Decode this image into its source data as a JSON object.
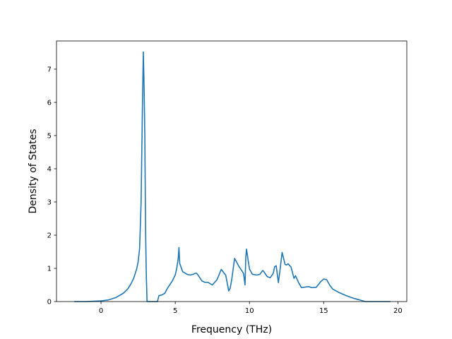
{
  "chart_data": {
    "type": "line",
    "title": "",
    "xlabel": "Frequency (THz)",
    "ylabel": "Density of States",
    "xlim": [
      -3.0,
      20.6
    ],
    "ylim": [
      0,
      7.85
    ],
    "xticks": [
      0,
      5,
      10,
      15,
      20
    ],
    "yticks": [
      0,
      1,
      2,
      3,
      4,
      5,
      6,
      7
    ],
    "xtick_labels": [
      "0",
      "5",
      "10",
      "15",
      "20"
    ],
    "ytick_labels": [
      "0",
      "1",
      "2",
      "3",
      "4",
      "5",
      "6",
      "7"
    ],
    "grid": false,
    "legend": "none",
    "series": [
      {
        "color": "#1f77b4",
        "x": [
          -1.8,
          -1.0,
          0.0,
          0.5,
          1.0,
          1.5,
          1.8,
          2.0,
          2.2,
          2.4,
          2.5,
          2.6,
          2.7,
          2.8,
          2.85,
          2.9,
          2.95,
          3.0,
          3.05,
          3.1,
          3.2,
          3.3,
          3.5,
          3.8,
          3.9,
          4.1,
          4.3,
          4.5,
          4.8,
          5.0,
          5.1,
          5.2,
          5.25,
          5.3,
          5.5,
          5.8,
          6.0,
          6.2,
          6.4,
          6.5,
          6.8,
          7.0,
          7.2,
          7.5,
          7.8,
          7.9,
          8.1,
          8.3,
          8.4,
          8.6,
          8.7,
          8.8,
          9.0,
          9.3,
          9.5,
          9.6,
          9.7,
          9.75,
          9.8,
          10.0,
          10.2,
          10.5,
          10.7,
          10.9,
          11.0,
          11.2,
          11.4,
          11.6,
          11.7,
          11.8,
          11.95,
          12.05,
          12.2,
          12.4,
          12.5,
          12.6,
          12.8,
          13.0,
          13.1,
          13.3,
          13.5,
          13.8,
          14.0,
          14.2,
          14.5,
          14.8,
          15.0,
          15.2,
          15.4,
          15.6,
          16.0,
          16.5,
          17.0,
          17.5,
          17.8,
          18.5,
          19.5
        ],
        "y": [
          0.0,
          0.0,
          0.02,
          0.05,
          0.12,
          0.25,
          0.38,
          0.52,
          0.7,
          0.98,
          1.2,
          1.6,
          3.0,
          6.2,
          7.52,
          6.5,
          5.0,
          2.2,
          0.8,
          0.0,
          0.0,
          0.0,
          0.0,
          0.0,
          0.18,
          0.2,
          0.25,
          0.42,
          0.62,
          0.8,
          1.0,
          1.3,
          1.63,
          1.15,
          0.9,
          0.82,
          0.8,
          0.82,
          0.86,
          0.82,
          0.62,
          0.58,
          0.58,
          0.5,
          0.65,
          0.75,
          0.97,
          0.85,
          0.8,
          0.32,
          0.4,
          0.65,
          1.3,
          1.05,
          0.92,
          0.85,
          0.5,
          1.3,
          1.58,
          0.98,
          0.82,
          0.8,
          0.82,
          0.94,
          0.88,
          0.75,
          0.72,
          0.85,
          1.05,
          1.08,
          0.57,
          0.92,
          1.48,
          1.12,
          1.1,
          1.14,
          1.04,
          0.7,
          0.78,
          0.58,
          0.42,
          0.44,
          0.45,
          0.42,
          0.43,
          0.6,
          0.68,
          0.66,
          0.5,
          0.38,
          0.28,
          0.18,
          0.1,
          0.04,
          0.0,
          0.0,
          0.0
        ]
      }
    ]
  }
}
